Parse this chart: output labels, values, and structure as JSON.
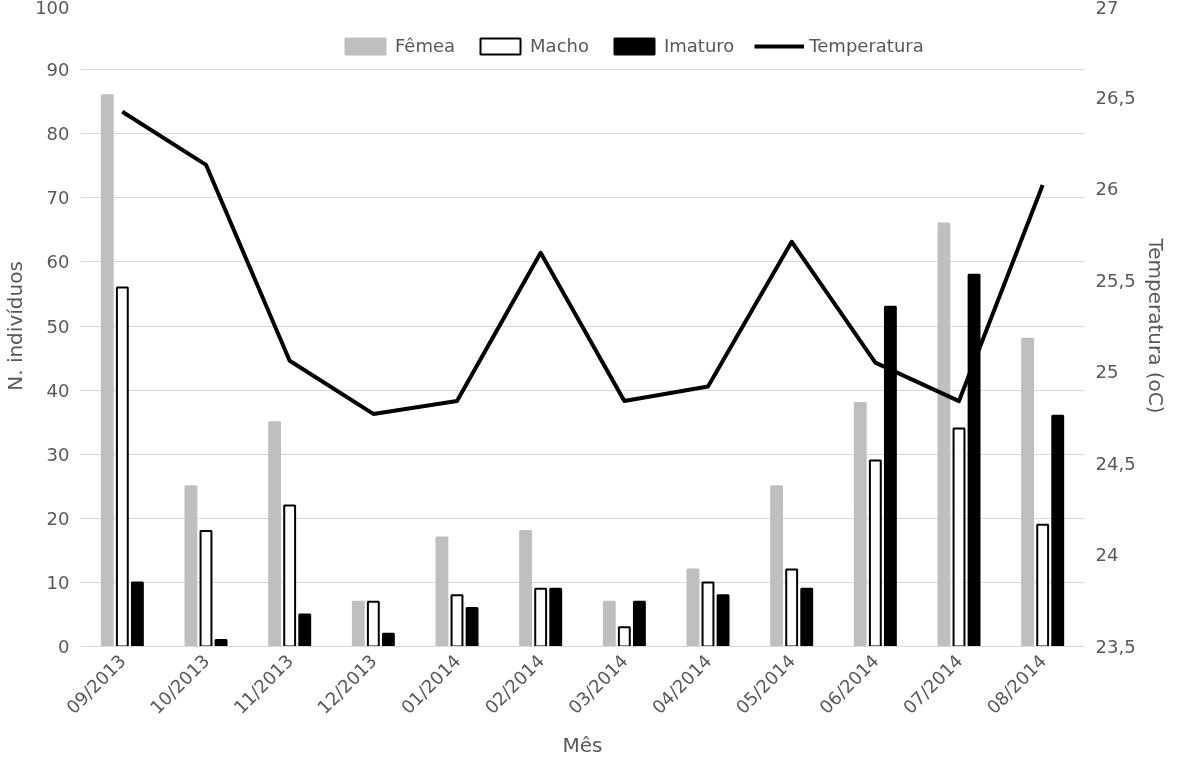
{
  "chart_data": {
    "type": "bar",
    "xlabel": "Mês",
    "ylabel": "N. indivíduos",
    "y2label": "Temperatura (oC)",
    "categories": [
      "09/2013",
      "10/2013",
      "11/2013",
      "12/2013",
      "01/2014",
      "02/2014",
      "03/2014",
      "04/2014",
      "05/2014",
      "06/2014",
      "07/2014",
      "08/2014"
    ],
    "series": [
      {
        "name": "Fêmea",
        "color": "#bfbfbf",
        "values": [
          86,
          25,
          35,
          7,
          17,
          18,
          7,
          12,
          25,
          38,
          66,
          48
        ]
      },
      {
        "name": "Macho",
        "color": "#ffffff",
        "values": [
          56,
          18,
          22,
          7,
          8,
          9,
          3,
          10,
          12,
          29,
          34,
          19
        ]
      },
      {
        "name": "Imaturo",
        "color": "#000000",
        "values": [
          10,
          1,
          5,
          2,
          6,
          9,
          7,
          8,
          9,
          53,
          58,
          36
        ]
      },
      {
        "name": "Temperatura",
        "type": "line",
        "axis": "y2",
        "color": "#000000",
        "values": [
          26.42,
          26.13,
          25.06,
          24.77,
          24.84,
          25.65,
          24.84,
          24.92,
          25.71,
          25.05,
          24.84,
          26.02
        ]
      }
    ],
    "ylim": [
      0,
      100
    ],
    "yticks": [
      0,
      10,
      20,
      30,
      40,
      50,
      60,
      70,
      80,
      90,
      100
    ],
    "y2lim": [
      23.5,
      27
    ],
    "y2ticks": [
      {
        "value": 23.5,
        "label": "23,5"
      },
      24,
      {
        "value": 24.5,
        "label": "24,5"
      },
      25,
      {
        "value": 25.5,
        "label": "25,5"
      },
      26,
      {
        "value": 26.5,
        "label": "26,5"
      },
      27
    ],
    "grid": "y",
    "legend": "top",
    "marker": "none",
    "line_style": "solid"
  }
}
